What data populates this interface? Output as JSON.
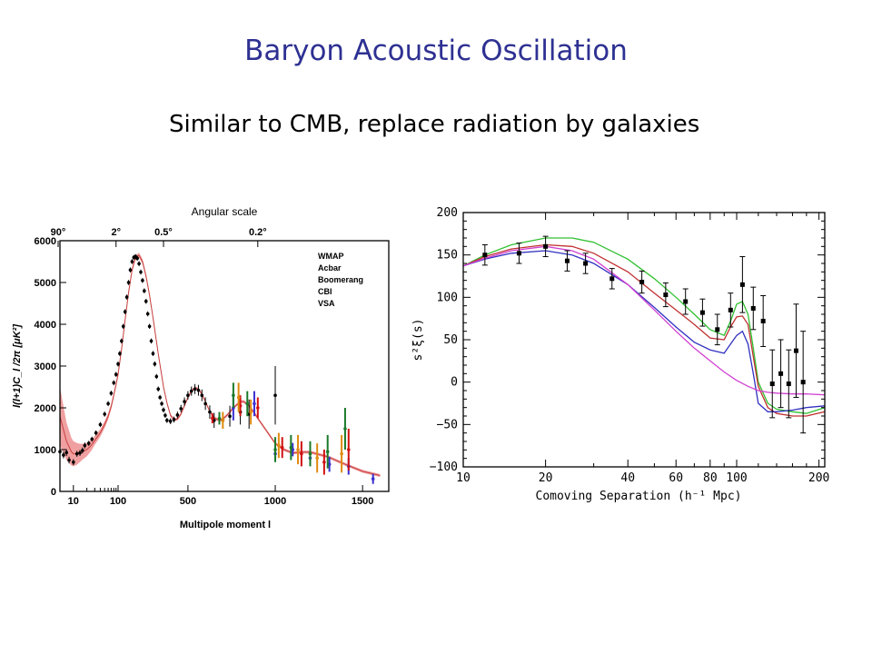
{
  "slide": {
    "title": "Baryon Acoustic Oscillation",
    "subtitle": "Similar to CMB, replace radiation by galaxies"
  },
  "chart_data": [
    {
      "type": "scatter",
      "xlabel": "Multipole moment l",
      "ylabel": "l(l+1)C_l /2π [μK²]",
      "top_axis_label": "Angular scale",
      "x_scale": "log below 100, linear above 100",
      "xlim": [
        5,
        1650
      ],
      "ylim": [
        0,
        6000
      ],
      "x_tick_labels": [
        "10",
        "100",
        "500",
        "1000",
        "1500"
      ],
      "x_ticks": [
        10,
        100,
        500,
        1000,
        1500
      ],
      "y_ticks": [
        0,
        1000,
        2000,
        3000,
        4000,
        5000,
        6000
      ],
      "top_ticks": [
        {
          "label": "90°",
          "l": 2
        },
        {
          "label": "2°",
          "l": 90
        },
        {
          "label": "0.5°",
          "l": 360
        },
        {
          "label": "0.2°",
          "l": 900
        }
      ],
      "legend_position": "top-right",
      "colors": {
        "WMAP": "#000000",
        "Acbar": "#3a2fd0",
        "Boomerang": "#1a7a2a",
        "CBI": "#d01010",
        "VSA": "#e08a10",
        "model_band": "#f0a0a0",
        "model_line": "#c84040",
        "tail_line": "#aaaaaa"
      },
      "model": {
        "l": [
          5,
          7,
          9,
          10,
          12,
          14,
          16,
          20,
          25,
          30,
          40,
          50,
          60,
          70,
          80,
          90,
          100,
          120,
          140,
          160,
          180,
          200,
          220,
          240,
          260,
          280,
          300,
          330,
          360,
          380,
          400,
          420,
          440,
          460,
          480,
          500,
          520,
          540,
          560,
          580,
          600,
          620,
          650,
          680,
          700,
          730,
          760,
          800,
          820,
          850,
          880,
          900,
          950,
          1000,
          1050,
          1100,
          1150,
          1200,
          1300,
          1400,
          1500,
          1600
        ],
        "D": [
          1800,
          1200,
          950,
          900,
          900,
          920,
          950,
          1000,
          1100,
          1220,
          1400,
          1600,
          1800,
          2030,
          2300,
          2550,
          2800,
          3400,
          4100,
          4750,
          5300,
          5600,
          5650,
          5500,
          5150,
          4700,
          4150,
          3300,
          2500,
          2120,
          1820,
          1720,
          1730,
          1850,
          2050,
          2250,
          2400,
          2480,
          2450,
          2330,
          2150,
          1960,
          1760,
          1700,
          1730,
          1850,
          2000,
          2150,
          2150,
          2050,
          1880,
          1750,
          1450,
          1150,
          1000,
          920,
          940,
          940,
          830,
          650,
          480,
          380
        ],
        "band_halfwidth": [
          700,
          450,
          330,
          300,
          260,
          220,
          190,
          160,
          130,
          110,
          90,
          80,
          75,
          70,
          65,
          62,
          60,
          60,
          60,
          60,
          60,
          60,
          60,
          60,
          60,
          55,
          50,
          45,
          40,
          38,
          36,
          35,
          35,
          35,
          35,
          35,
          35,
          35,
          35,
          35,
          35,
          35,
          35,
          35,
          35,
          35,
          35,
          35,
          35,
          35,
          35,
          35,
          35,
          35,
          35,
          35,
          35,
          35,
          35,
          35,
          35,
          35
        ]
      },
      "series": [
        {
          "name": "WMAP",
          "x": [
            2,
            3,
            4,
            5,
            6,
            7,
            8,
            10,
            12,
            14,
            16,
            18,
            22,
            26,
            32,
            40,
            50,
            60,
            70,
            80,
            90,
            100,
            110,
            120,
            130,
            140,
            150,
            160,
            170,
            180,
            190,
            200,
            210,
            220,
            230,
            240,
            250,
            260,
            270,
            280,
            290,
            300,
            310,
            320,
            330,
            340,
            350,
            360,
            370,
            380,
            400,
            420,
            440,
            460,
            480,
            500,
            520,
            540,
            560,
            580,
            600,
            625,
            650,
            700,
            740,
            800,
            850,
            1000
          ],
          "y": [
            900,
            700,
            800,
            950,
            870,
            930,
            750,
            700,
            900,
            920,
            980,
            1100,
            1150,
            1250,
            1400,
            1600,
            1850,
            2100,
            2350,
            2600,
            2800,
            3050,
            3300,
            3600,
            3950,
            4300,
            4650,
            5000,
            5300,
            5500,
            5600,
            5620,
            5580,
            5450,
            5250,
            5050,
            4800,
            4550,
            4250,
            3950,
            3600,
            3300,
            3050,
            2750,
            2450,
            2250,
            2100,
            1950,
            1820,
            1700,
            1680,
            1720,
            1830,
            1980,
            2150,
            2300,
            2400,
            2450,
            2420,
            2300,
            2100,
            1900,
            1700,
            1700,
            1800,
            1900,
            1850,
            2300
          ],
          "err": [
            100,
            100,
            100,
            80,
            80,
            80,
            80,
            70,
            70,
            70,
            70,
            70,
            60,
            60,
            60,
            60,
            60,
            60,
            60,
            60,
            60,
            60,
            60,
            60,
            60,
            60,
            60,
            60,
            60,
            60,
            60,
            60,
            60,
            60,
            60,
            60,
            60,
            60,
            60,
            60,
            60,
            60,
            60,
            60,
            60,
            60,
            60,
            60,
            60,
            60,
            70,
            70,
            80,
            90,
            100,
            100,
            110,
            120,
            130,
            140,
            150,
            160,
            180,
            200,
            250,
            300,
            350,
            700
          ]
        },
        {
          "name": "Acbar",
          "x": [
            760,
            880,
            1000,
            1100,
            1200,
            1310,
            1420,
            1560
          ],
          "y": [
            2000,
            2100,
            900,
            1000,
            800,
            650,
            600,
            300
          ],
          "err": [
            300,
            300,
            150,
            160,
            170,
            180,
            200,
            120
          ]
        },
        {
          "name": "Boomerang",
          "x": [
            680,
            760,
            840,
            1000,
            1090,
            1200,
            1300,
            1400
          ],
          "y": [
            1750,
            2300,
            2100,
            1000,
            1050,
            900,
            950,
            1500
          ],
          "err": [
            150,
            300,
            300,
            300,
            300,
            300,
            400,
            500
          ]
        },
        {
          "name": "CBI",
          "x": [
            640,
            800,
            900,
            1040,
            1150,
            1280,
            1420
          ],
          "y": [
            1750,
            2050,
            2000,
            1050,
            900,
            700,
            1000
          ],
          "err": [
            120,
            250,
            250,
            250,
            300,
            300,
            500
          ]
        },
        {
          "name": "VSA",
          "x": [
            700,
            790,
            860,
            1020,
            1130,
            1240,
            1380
          ],
          "y": [
            1700,
            2250,
            1900,
            1100,
            1000,
            800,
            900
          ],
          "err": [
            200,
            350,
            300,
            300,
            350,
            350,
            450
          ]
        }
      ]
    },
    {
      "type": "line",
      "xlabel": "Comoving Separation (h⁻¹ Mpc)",
      "ylabel": "s²ξ(s)",
      "x_scale": "log",
      "xlim": [
        10,
        210
      ],
      "ylim": [
        -100,
        200
      ],
      "x_ticks": [
        10,
        20,
        40,
        60,
        80,
        100,
        200
      ],
      "y_ticks": [
        -100,
        -50,
        0,
        50,
        100,
        150,
        200
      ],
      "colors": {
        "model_green": "#30c030",
        "model_red": "#c03030",
        "model_blue": "#3030c0",
        "model_magenta": "#d040d0",
        "data": "#000000"
      },
      "series": [
        {
          "name": "",
          "color": "model_green",
          "x": [
            10,
            12,
            15,
            20,
            25,
            30,
            40,
            50,
            60,
            70,
            80,
            90,
            95,
            100,
            105,
            110,
            115,
            120,
            130,
            140,
            160,
            180,
            210
          ],
          "y": [
            137,
            150,
            162,
            170,
            170,
            165,
            145,
            122,
            100,
            80,
            62,
            55,
            72,
            92,
            95,
            80,
            40,
            0,
            -25,
            -32,
            -35,
            -37,
            -30
          ]
        },
        {
          "name": "",
          "color": "model_red",
          "x": [
            10,
            12,
            15,
            20,
            25,
            30,
            40,
            50,
            60,
            70,
            80,
            90,
            95,
            100,
            105,
            110,
            115,
            120,
            130,
            140,
            160,
            180,
            210
          ],
          "y": [
            137,
            148,
            157,
            162,
            160,
            152,
            130,
            105,
            85,
            68,
            52,
            50,
            65,
            77,
            78,
            68,
            30,
            -5,
            -30,
            -37,
            -40,
            -40,
            -35
          ]
        },
        {
          "name": "",
          "color": "model_blue",
          "x": [
            10,
            12,
            15,
            20,
            25,
            30,
            40,
            50,
            60,
            70,
            80,
            90,
            95,
            100,
            105,
            110,
            115,
            120,
            130,
            140,
            160,
            180,
            210
          ],
          "y": [
            137,
            145,
            152,
            155,
            150,
            140,
            115,
            88,
            65,
            47,
            38,
            34,
            45,
            55,
            60,
            45,
            10,
            -25,
            -35,
            -35,
            -33,
            -30,
            -28
          ]
        },
        {
          "name": "",
          "color": "model_magenta",
          "x": [
            10,
            12,
            15,
            20,
            25,
            30,
            40,
            50,
            60,
            70,
            80,
            90,
            100,
            110,
            120,
            130,
            140,
            160,
            180,
            210
          ],
          "y": [
            137,
            146,
            155,
            160,
            155,
            145,
            115,
            85,
            60,
            40,
            25,
            12,
            2,
            -5,
            -10,
            -12,
            -13,
            -14,
            -14,
            -15
          ],
          "style": "solid"
        },
        {
          "name": "",
          "color": "data",
          "marker": "square",
          "x": [
            12,
            16,
            20,
            24,
            28,
            35,
            45,
            55,
            65,
            75,
            85,
            95,
            105,
            115,
            125,
            135,
            145,
            155,
            165,
            175
          ],
          "y": [
            150,
            152,
            160,
            143,
            140,
            122,
            118,
            103,
            95,
            82,
            62,
            85,
            115,
            87,
            72,
            -2,
            10,
            -2,
            37,
            0
          ],
          "err": [
            12,
            12,
            12,
            12,
            12,
            12,
            13,
            14,
            15,
            16,
            18,
            20,
            33,
            25,
            30,
            40,
            40,
            40,
            55,
            60
          ]
        }
      ]
    }
  ]
}
